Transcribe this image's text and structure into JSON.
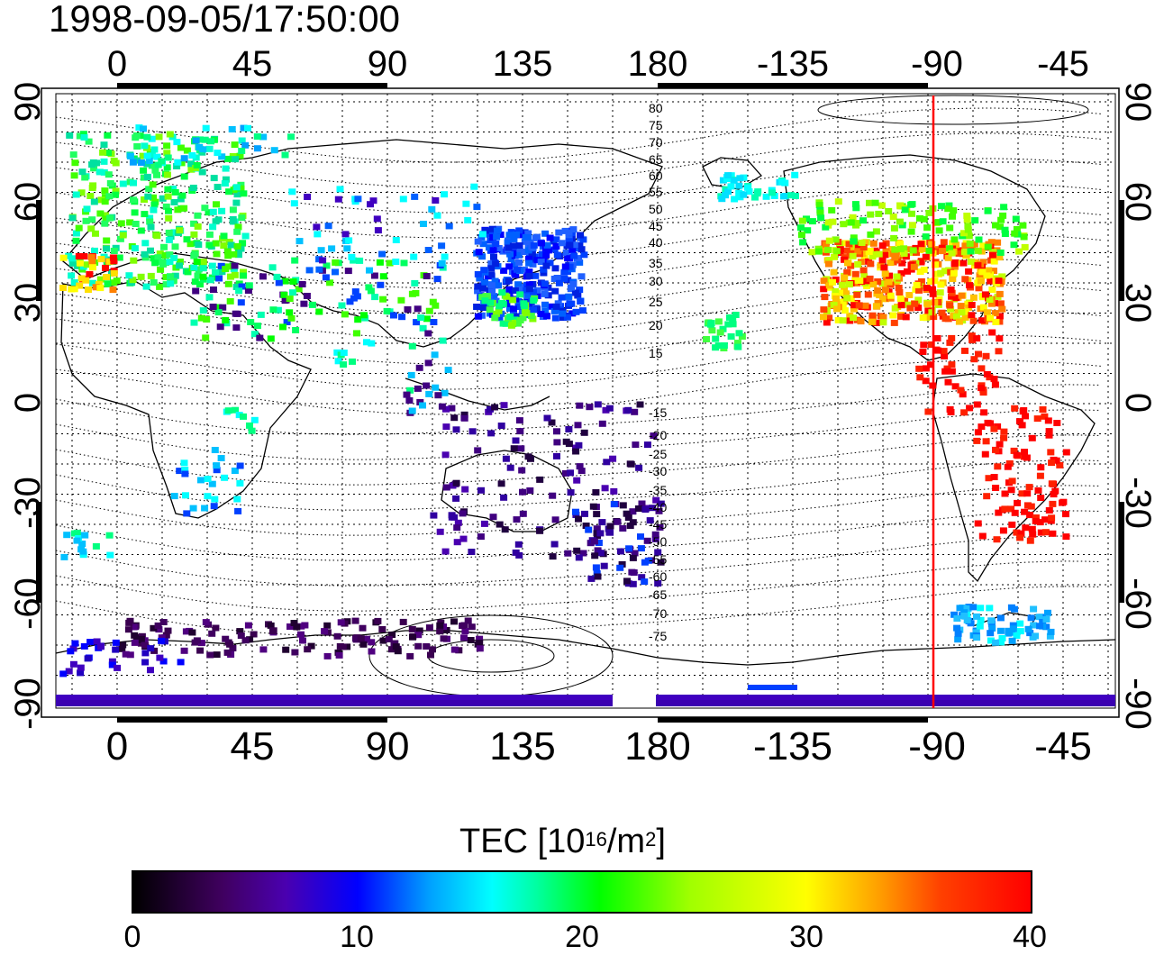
{
  "timestamp": "1998-09-05/17:50:00",
  "axes": {
    "top_labels": [
      "0",
      "45",
      "90",
      "135",
      "180",
      "-135",
      "-90",
      "-45"
    ],
    "bottom_labels": [
      "0",
      "45",
      "90",
      "135",
      "180",
      "-135",
      "-90",
      "-45"
    ],
    "left_labels": [
      "90",
      "60",
      "30",
      "0",
      "-30",
      "-60",
      "-90"
    ],
    "right_labels": [
      "90",
      "60",
      "30",
      "0",
      "-30",
      "-60",
      "-90"
    ]
  },
  "contour_labels": [
    "80",
    "75",
    "70",
    "65",
    "60",
    "55",
    "50",
    "45",
    "40",
    "35",
    "30",
    "25",
    "20",
    "15",
    "-15",
    "-20",
    "-25",
    "-30",
    "-35",
    "-40",
    "-45",
    "-50",
    "-55",
    "-60",
    "-65",
    "-70",
    "-75"
  ],
  "colorbar": {
    "title_main": "TEC  [10",
    "title_exp1": "16",
    "title_mid": "/m",
    "title_exp2": "2",
    "title_end": "]",
    "ticks": [
      "0",
      "10",
      "20",
      "30",
      "40"
    ]
  },
  "colors": {
    "marker_line": "#ff0000"
  }
}
